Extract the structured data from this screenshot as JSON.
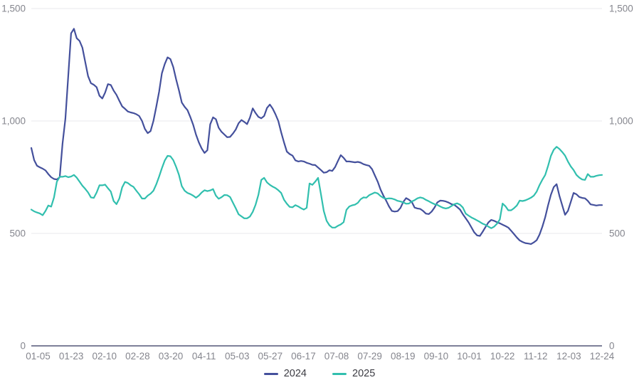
{
  "chart_data": {
    "type": "line",
    "grid": true,
    "legend_position": "bottom-center",
    "colors": {
      "gridline": "#e9e9ee",
      "zero_axis_line": "#7d8099",
      "tick_label": "#85868e",
      "legend_text": "#3c3c43",
      "background": "#ffffff"
    },
    "y_axis": {
      "min": 0,
      "max": 1500,
      "tick_values": [
        0,
        500,
        1000,
        1500
      ],
      "tick_labels": [
        "0",
        "500",
        "1,000",
        "1,500"
      ],
      "sides": [
        "left",
        "right"
      ]
    },
    "x_tick_labels": [
      "01-05",
      "01-23",
      "02-10",
      "02-28",
      "03-20",
      "04-11",
      "05-03",
      "05-27",
      "06-17",
      "07-08",
      "07-29",
      "08-19",
      "09-10",
      "10-01",
      "10-22",
      "11-12",
      "12-03",
      "12-24"
    ],
    "series": [
      {
        "name": "2024",
        "color": "#44509c",
        "values": [
          880,
          826,
          801,
          794,
          788,
          780,
          764,
          750,
          742,
          740,
          750,
          900,
          1010,
          1200,
          1390,
          1410,
          1368,
          1356,
          1326,
          1262,
          1199,
          1168,
          1161,
          1150,
          1112,
          1100,
          1126,
          1164,
          1160,
          1135,
          1116,
          1090,
          1065,
          1054,
          1042,
          1038,
          1035,
          1030,
          1022,
          1000,
          965,
          946,
          955,
          1000,
          1063,
          1130,
          1212,
          1253,
          1283,
          1275,
          1240,
          1185,
          1136,
          1082,
          1063,
          1048,
          1018,
          984,
          940,
          905,
          878,
          858,
          870,
          985,
          1016,
          1008,
          970,
          952,
          940,
          928,
          929,
          944,
          962,
          990,
          1004,
          996,
          986,
          1015,
          1056,
          1035,
          1018,
          1012,
          1022,
          1058,
          1073,
          1055,
          1030,
          1000,
          950,
          905,
          864,
          853,
          846,
          825,
          820,
          822,
          820,
          814,
          810,
          805,
          804,
          793,
          782,
          770,
          772,
          781,
          778,
          795,
          822,
          848,
          836,
          820,
          820,
          818,
          816,
          818,
          815,
          808,
          804,
          801,
          786,
          758,
          730,
          695,
          668,
          645,
          620,
          600,
          597,
          599,
          613,
          640,
          657,
          650,
          640,
          615,
          611,
          609,
          600,
          588,
          586,
          597,
          615,
          638,
          646,
          645,
          642,
          637,
          630,
          627,
          617,
          606,
          585,
          567,
          549,
          527,
          505,
          491,
          489,
          508,
          529,
          549,
          560,
          556,
          550,
          545,
          539,
          533,
          526,
          512,
          497,
          482,
          469,
          462,
          457,
          455,
          453,
          460,
          470,
          495,
          530,
          572,
          625,
          672,
          706,
          719,
          668,
          625,
          583,
          600,
          640,
          680,
          674,
          662,
          658,
          656,
          645,
          629,
          627,
          624,
          626,
          626
        ]
      },
      {
        "name": "2025",
        "color": "#31bfae",
        "values": [
          606,
          598,
          593,
          589,
          581,
          600,
          624,
          619,
          660,
          730,
          752,
          752,
          755,
          750,
          753,
          760,
          748,
          730,
          712,
          698,
          682,
          660,
          658,
          682,
          714,
          714,
          717,
          701,
          686,
          644,
          630,
          655,
          705,
          729,
          724,
          714,
          707,
          690,
          674,
          655,
          655,
          668,
          677,
          690,
          718,
          753,
          790,
          824,
          845,
          843,
          826,
          796,
          760,
          710,
          690,
          680,
          675,
          668,
          659,
          668,
          682,
          692,
          688,
          691,
          697,
          668,
          654,
          661,
          671,
          670,
          662,
          637,
          612,
          585,
          576,
          567,
          567,
          575,
          596,
          628,
          672,
          738,
          747,
          727,
          716,
          708,
          702,
          692,
          680,
          650,
          632,
          618,
          616,
          626,
          620,
          612,
          606,
          614,
          722,
          716,
          730,
          747,
          675,
          600,
          556,
          536,
          526,
          526,
          534,
          540,
          550,
          605,
          620,
          625,
          628,
          636,
          652,
          660,
          659,
          670,
          676,
          682,
          678,
          666,
          658,
          654,
          656,
          655,
          651,
          645,
          642,
          638,
          632,
          633,
          642,
          648,
          656,
          660,
          657,
          649,
          643,
          636,
          630,
          627,
          620,
          614,
          611,
          614,
          622,
          630,
          634,
          628,
          615,
          588,
          579,
          571,
          565,
          558,
          551,
          543,
          538,
          530,
          523,
          530,
          543,
          562,
          633,
          621,
          603,
          603,
          612,
          624,
          646,
          644,
          647,
          653,
          659,
          668,
          686,
          715,
          739,
          760,
          800,
          845,
          872,
          885,
          876,
          862,
          846,
          820,
          798,
          782,
          760,
          748,
          740,
          738,
          764,
          752,
          752,
          756,
          759,
          760
        ]
      }
    ]
  }
}
